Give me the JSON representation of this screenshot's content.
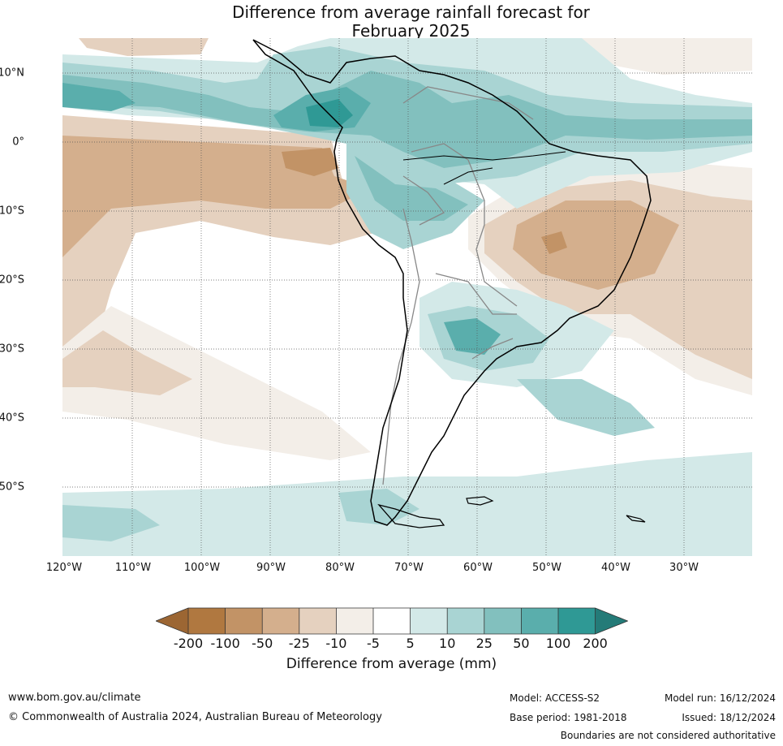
{
  "title_line1": "Difference from average rainfall forecast for",
  "title_line2": "February 2025",
  "map": {
    "region": "South America",
    "lat_labels": [
      "10°N",
      "0°",
      "10°S",
      "20°S",
      "30°S",
      "40°S",
      "50°S"
    ],
    "lon_labels": [
      "120°W",
      "110°W",
      "100°W",
      "90°W",
      "80°W",
      "70°W",
      "60°W",
      "50°W",
      "40°W",
      "30°W"
    ],
    "gridlines": "dotted"
  },
  "colorbar": {
    "ticks": [
      "-200",
      "-100",
      "-50",
      "-25",
      "-10",
      "-5",
      "5",
      "10",
      "25",
      "50",
      "100",
      "200"
    ],
    "colors": [
      "#9c6633",
      "#b07840",
      "#c29366",
      "#d4af8d",
      "#e5d1bf",
      "#f3eee8",
      "#ffffff",
      "#d3e9e8",
      "#a9d4d3",
      "#82c0be",
      "#5aaeac",
      "#2f9995",
      "#247b78"
    ],
    "label": "Difference from average (mm)"
  },
  "footer": {
    "website": "www.bom.gov.au/climate",
    "copyright": "© Commonwealth of Australia 2024, Australian Bureau of Meteorology",
    "model": "Model: ACCESS-S2",
    "base_period": "Base period: 1981-2018",
    "model_run": "Model run: 16/12/2024",
    "issued": "Issued: 18/12/2024",
    "disclaimer": "Boundaries are not considered authoritative"
  }
}
